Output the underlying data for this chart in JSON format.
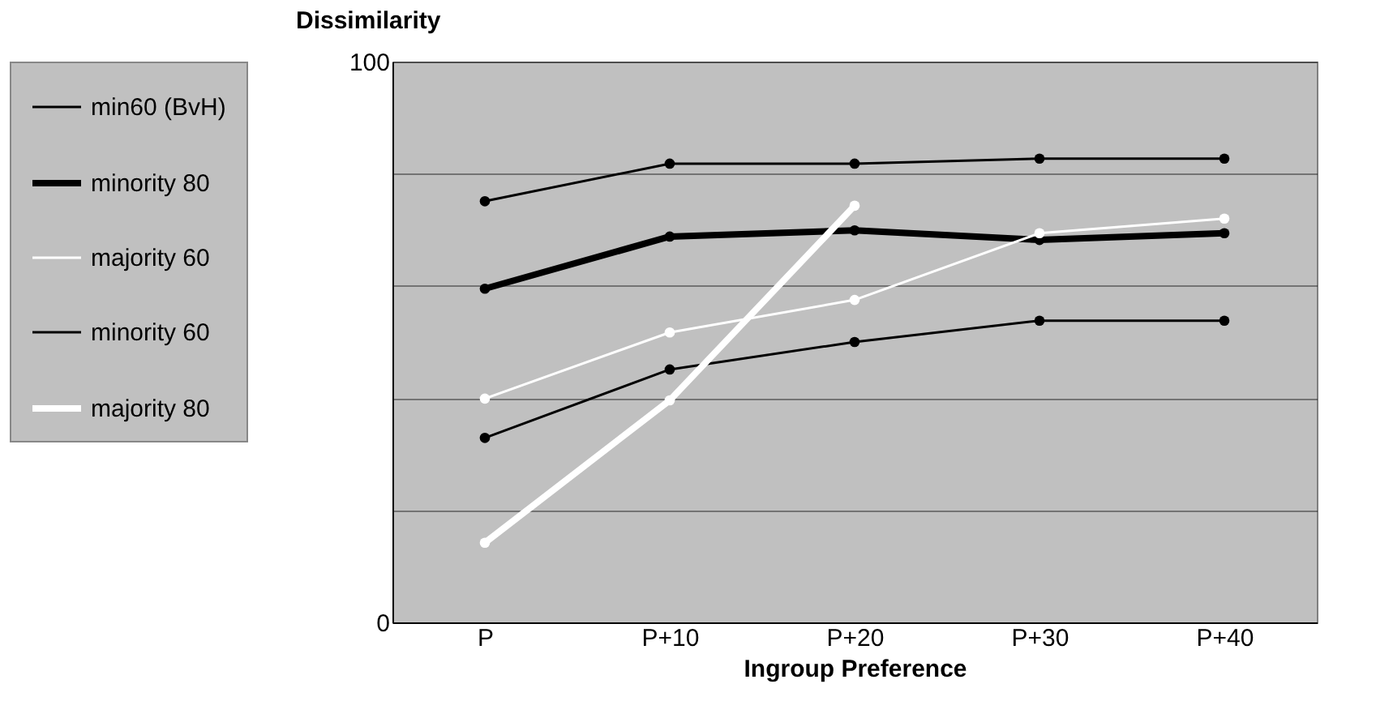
{
  "chart_data": {
    "type": "line",
    "xlabel": "Ingroup Preference",
    "ylabel": "Dissimilarity",
    "categories": [
      "P",
      "P+10",
      "P+20",
      "P+30",
      "P+40"
    ],
    "series": [
      {
        "name": "min60 (BvH)",
        "color": "#000000",
        "values": [
          75.1,
          81.8,
          81.8,
          82.7,
          82.7
        ]
      },
      {
        "name": "minority 80",
        "color": "#000000",
        "values": [
          59.5,
          68.8,
          69.9,
          68.2,
          69.4
        ]
      },
      {
        "name": "majority 60",
        "color": "#ffffff",
        "values": [
          39.9,
          51.7,
          57.5,
          69.4,
          72.0
        ]
      },
      {
        "name": "minority 60",
        "color": "#000000",
        "values": [
          32.9,
          45.1,
          50.0,
          53.8,
          53.8
        ]
      },
      {
        "name": "majority 80",
        "color": "#ffffff",
        "values": [
          14.2,
          39.6,
          74.3,
          null,
          null
        ]
      }
    ],
    "ylim": [
      0,
      100
    ],
    "yticks": [
      0,
      {
        "value": 20,
        "label": null
      },
      {
        "value": 40,
        "label": null
      },
      {
        "value": 60,
        "label": null
      },
      {
        "value": 80,
        "label": null
      },
      100
    ],
    "grid": "y",
    "legend": "left",
    "marker": "circle",
    "line_style": "solid"
  }
}
